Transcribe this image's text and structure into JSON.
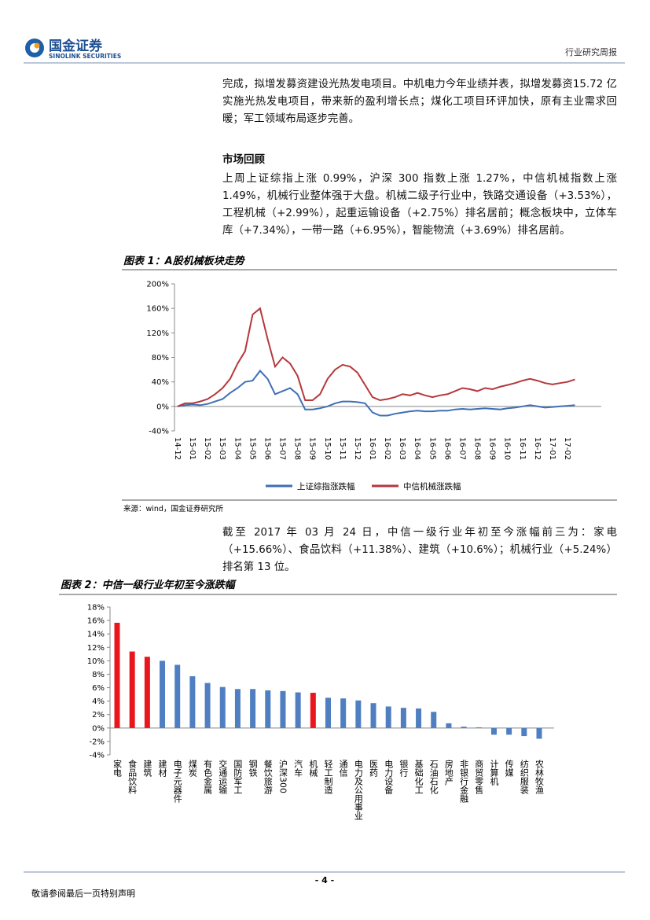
{
  "header": {
    "logo_cn": "国金证券",
    "logo_en": "SINOLINK SECURITIES",
    "report_type": "行业研究周报"
  },
  "paragraphs": [
    "完成，拟增发募资建设光热发电项目。中机电力今年业绩并表，拟增发募资15.72 亿实施光热发电项目，带来新的盈利增长点；煤化工项目环评加快，原有主业需求回暖；军工领域布局逐步完善。",
    "上周上证综指上涨 0.99%，沪深 300 指数上涨 1.27%，中信机械指数上涨1.49%，机械行业整体强于大盘。机械二级子行业中，铁路交通设备（+3.53%），工程机械（+2.99%），起重运输设备（+2.75%）排名居前；概念板块中，立体车库（+7.34%），一带一路（+6.95%），智能物流（+3.69%）排名居前。",
    "截至 2017 年 03 月 24 日，中信一级行业年初至今涨幅前三为：家电（+15.66%）、食品饮料（+11.38%）、建筑（+10.6%）；机械行业（+5.24%）排名第 13 位。"
  ],
  "section_heading": "市场回顾",
  "chart_data": [
    {
      "type": "line",
      "title": "图表 1：A股机械板块走势",
      "source": "来源：wind，国金证券研究所",
      "categories": [
        "14-12",
        null,
        "15-01",
        null,
        "15-02",
        null,
        "15-03",
        null,
        "15-04",
        null,
        "15-05",
        null,
        "15-06",
        null,
        "15-07",
        null,
        "15-08",
        null,
        "15-09",
        null,
        "15-10",
        null,
        "15-11",
        null,
        "15-12",
        null,
        "16-01",
        null,
        "16-02",
        null,
        "16-03",
        null,
        "16-04",
        null,
        "16-05",
        null,
        "16-06",
        null,
        "16-07",
        null,
        "16-08",
        null,
        "16-09",
        null,
        "16-10",
        null,
        "16-11",
        null,
        "16-12",
        null,
        "17-01",
        null,
        "17-02",
        null
      ],
      "series": [
        {
          "name": "上证综指涨跌幅",
          "color": "#3f6fb6",
          "values": [
            0,
            2,
            3,
            2,
            4,
            8,
            12,
            22,
            30,
            40,
            42,
            58,
            45,
            20,
            25,
            30,
            20,
            -5,
            -5,
            -3,
            0,
            5,
            8,
            8,
            7,
            5,
            -10,
            -15,
            -15,
            -12,
            -10,
            -8,
            -7,
            -8,
            -8,
            -7,
            -7,
            -5,
            -4,
            -5,
            -4,
            -3,
            -4,
            -5,
            -3,
            -2,
            0,
            2,
            0,
            -2,
            -1,
            0,
            1,
            2
          ]
        },
        {
          "name": "中信机械涨跌幅",
          "color": "#b5383b",
          "values": [
            0,
            5,
            5,
            8,
            12,
            20,
            30,
            45,
            70,
            90,
            150,
            160,
            110,
            65,
            80,
            70,
            50,
            10,
            10,
            20,
            45,
            60,
            68,
            65,
            55,
            35,
            15,
            10,
            12,
            15,
            20,
            18,
            22,
            18,
            15,
            18,
            20,
            25,
            30,
            28,
            25,
            30,
            28,
            32,
            35,
            38,
            42,
            45,
            42,
            38,
            36,
            38,
            40,
            44
          ]
        }
      ],
      "ylim": [
        -40,
        200
      ],
      "yticks": [
        {
          "value": -40,
          "label": "-40%"
        },
        {
          "value": 0,
          "label": "0%"
        },
        {
          "value": 40,
          "label": "40%"
        },
        {
          "value": 80,
          "label": "80%"
        },
        {
          "value": 120,
          "label": "120%"
        },
        {
          "value": 160,
          "label": "160%"
        },
        {
          "value": 200,
          "label": "200%"
        }
      ],
      "legend": "bottom"
    },
    {
      "type": "bar",
      "title": "图表 2：中信一级行业年初至今涨跌幅",
      "categories": [
        "家电",
        "食品饮料",
        "建筑",
        "建材",
        "电子元器件",
        "煤炭",
        "有色金属",
        "交通运输",
        "国防军工",
        "钢铁",
        "餐饮旅游",
        "沪深300",
        "汽车",
        "机械",
        "轻工制造",
        "通信",
        "电力及公用事业",
        "医药",
        "电力设备",
        "银行",
        "基础化工",
        "石油石化",
        "房地产",
        "非银行金融",
        "商贸零售",
        "计算机",
        "传媒",
        "纺织服装",
        "农林牧渔"
      ],
      "values": [
        15.66,
        11.38,
        10.6,
        10.0,
        9.4,
        7.7,
        6.7,
        6.1,
        5.8,
        5.8,
        5.6,
        5.5,
        5.3,
        5.24,
        4.5,
        4.4,
        4.1,
        3.7,
        3.2,
        3.0,
        2.9,
        2.4,
        0.7,
        0.2,
        0.1,
        -1.0,
        -1.0,
        -1.2,
        -1.6
      ],
      "colors": [
        "#e8171e",
        "#e8171e",
        "#e8171e",
        "#4f7fc0",
        "#4f7fc0",
        "#4f7fc0",
        "#4f7fc0",
        "#4f7fc0",
        "#4f7fc0",
        "#4f7fc0",
        "#4f7fc0",
        "#4f7fc0",
        "#4f7fc0",
        "#e8171e",
        "#4f7fc0",
        "#4f7fc0",
        "#4f7fc0",
        "#4f7fc0",
        "#4f7fc0",
        "#4f7fc0",
        "#4f7fc0",
        "#4f7fc0",
        "#4f7fc0",
        "#4f7fc0",
        "#4f7fc0",
        "#4f7fc0",
        "#4f7fc0",
        "#4f7fc0",
        "#4f7fc0"
      ],
      "ylim": [
        -4,
        18
      ],
      "yticks": [
        {
          "value": -4,
          "label": "-4%"
        },
        {
          "value": -2,
          "label": "-2%"
        },
        {
          "value": 0,
          "label": "0%"
        },
        {
          "value": 2,
          "label": "2%"
        },
        {
          "value": 4,
          "label": "4%"
        },
        {
          "value": 6,
          "label": "6%"
        },
        {
          "value": 8,
          "label": "8%"
        },
        {
          "value": 10,
          "label": "10%"
        },
        {
          "value": 12,
          "label": "12%"
        },
        {
          "value": 14,
          "label": "14%"
        },
        {
          "value": 16,
          "label": "16%"
        },
        {
          "value": 18,
          "label": "18%"
        }
      ]
    }
  ],
  "footer": {
    "page": "- 4 -",
    "disclaimer": "敬请参阅最后一页特别声明"
  }
}
